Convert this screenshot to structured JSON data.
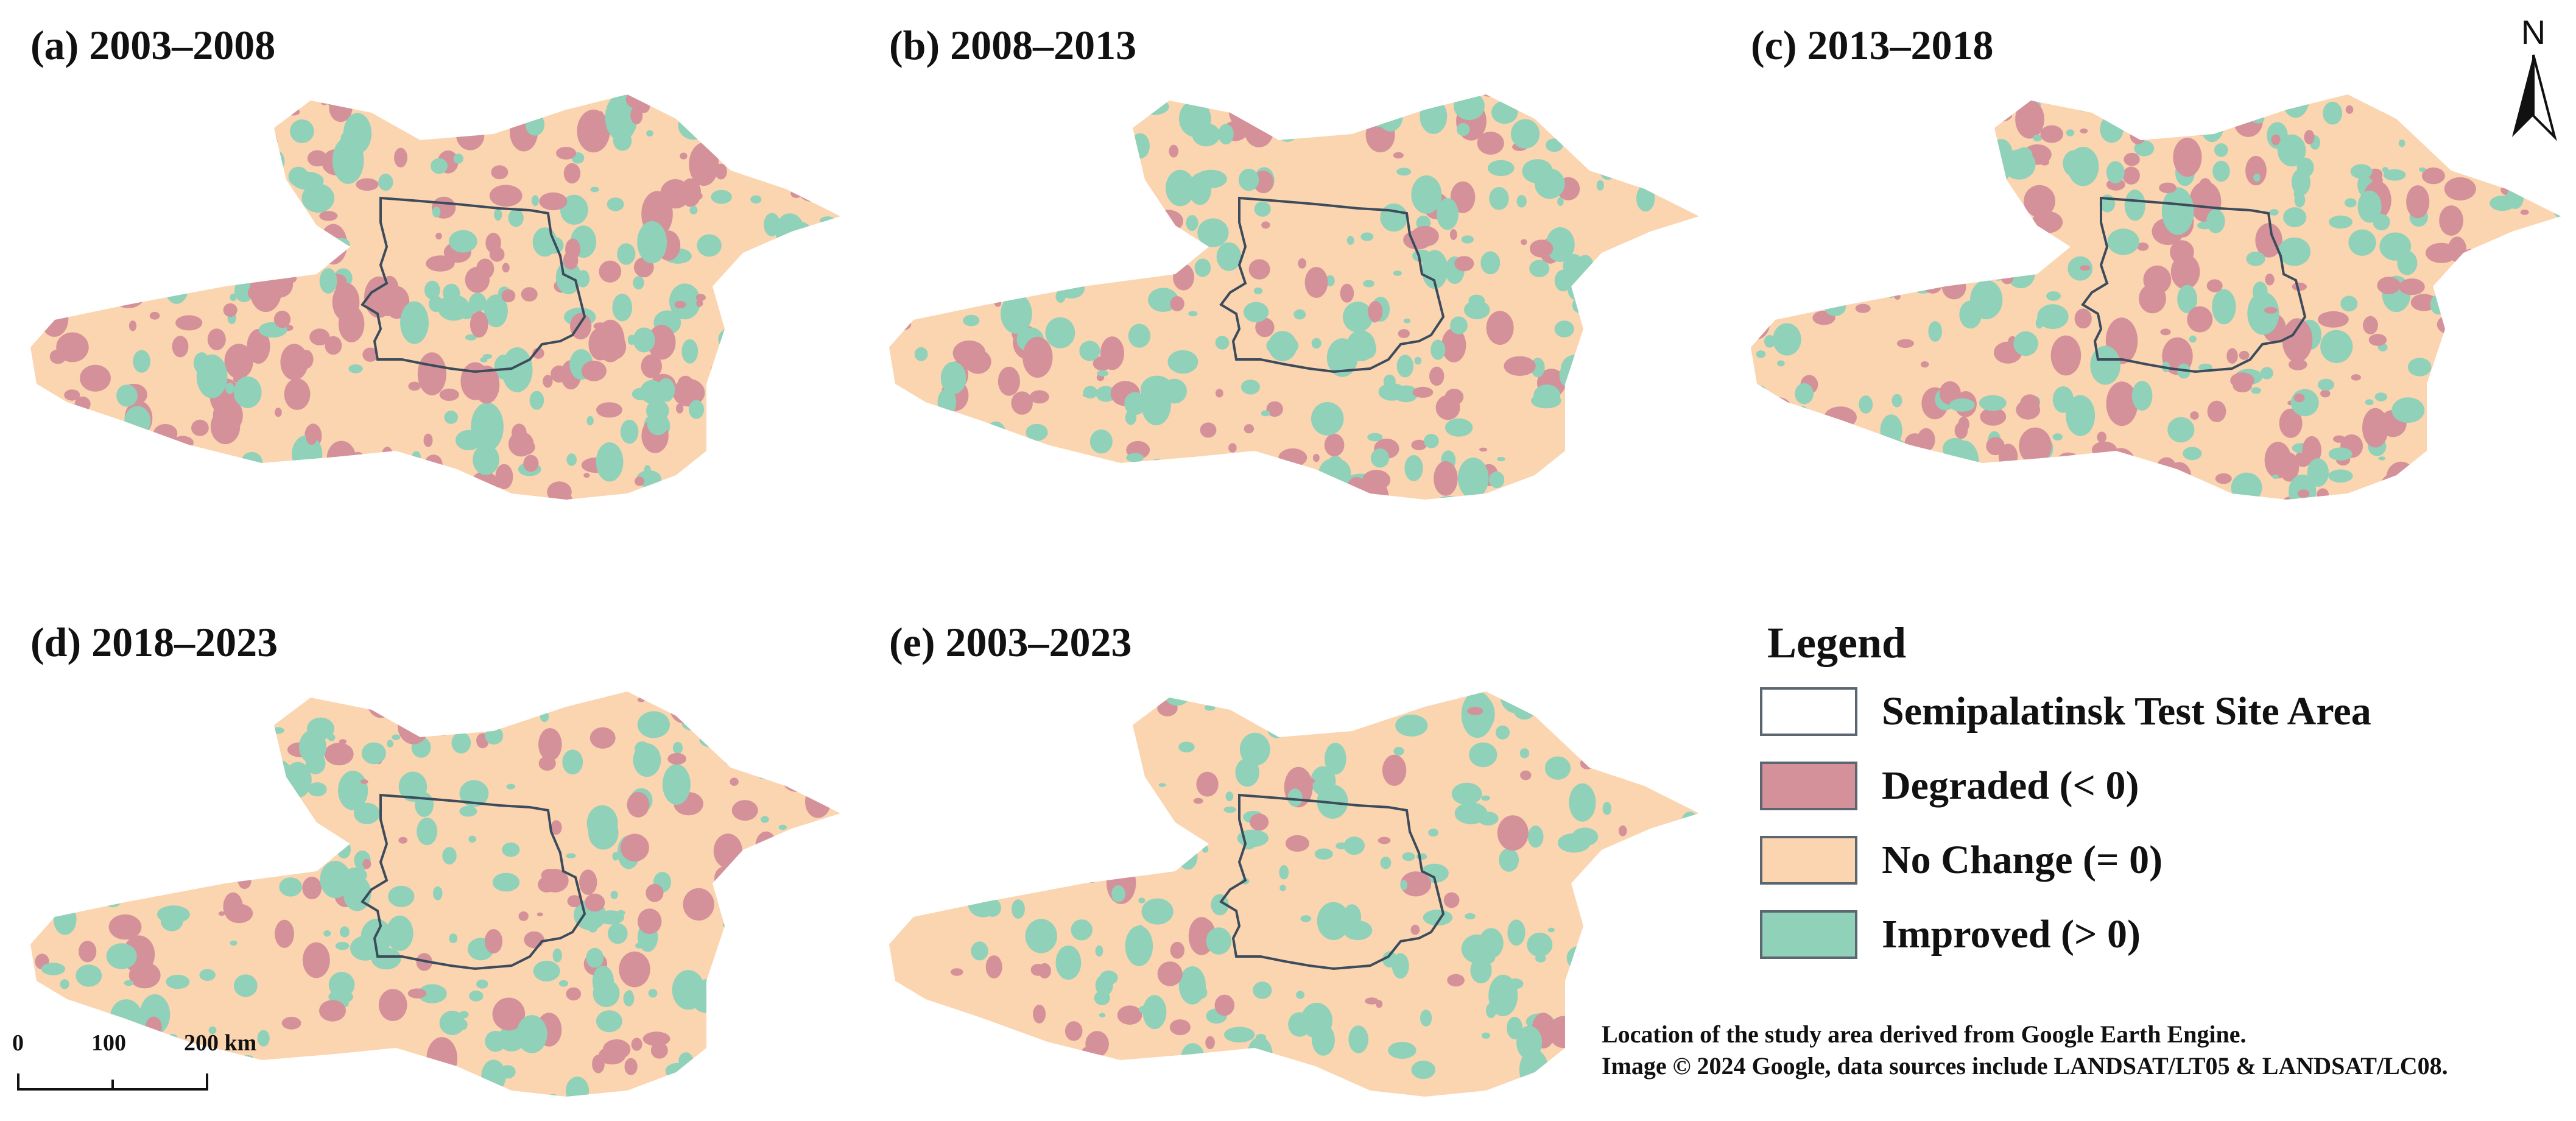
{
  "panels": [
    {
      "id": "a",
      "title": "(a) 2003–2008"
    },
    {
      "id": "b",
      "title": "(b) 2008–2013"
    },
    {
      "id": "c",
      "title": "(c) 2013–2018"
    },
    {
      "id": "d",
      "title": "(d) 2018–2023"
    },
    {
      "id": "e",
      "title": "(e) 2003–2023"
    }
  ],
  "legend": {
    "title": "Legend",
    "items": [
      {
        "label": "Semipalatinsk Test Site Area",
        "color": "#ffffff"
      },
      {
        "label": "Degraded  (< 0)",
        "color": "#d4919a"
      },
      {
        "label": "No Change (= 0)",
        "color": "#fbd4b0"
      },
      {
        "label": "Improved (> 0)",
        "color": "#8fd1b9"
      }
    ]
  },
  "north_arrow": {
    "letter": "N",
    "icon": "north-arrow-icon"
  },
  "scale_bar": {
    "labels": [
      "0",
      "100",
      "200 km"
    ]
  },
  "credit": {
    "line1": "Location of the study area derived from Google Earth Engine.",
    "line2": "Image © 2024 Google, data sources include LANDSAT/LT05 & LANDSAT/LC08."
  },
  "colors": {
    "degraded": "#d4919a",
    "no_change": "#fbd4b0",
    "improved": "#8fd1b9",
    "boundary": "#3c4c5c"
  }
}
